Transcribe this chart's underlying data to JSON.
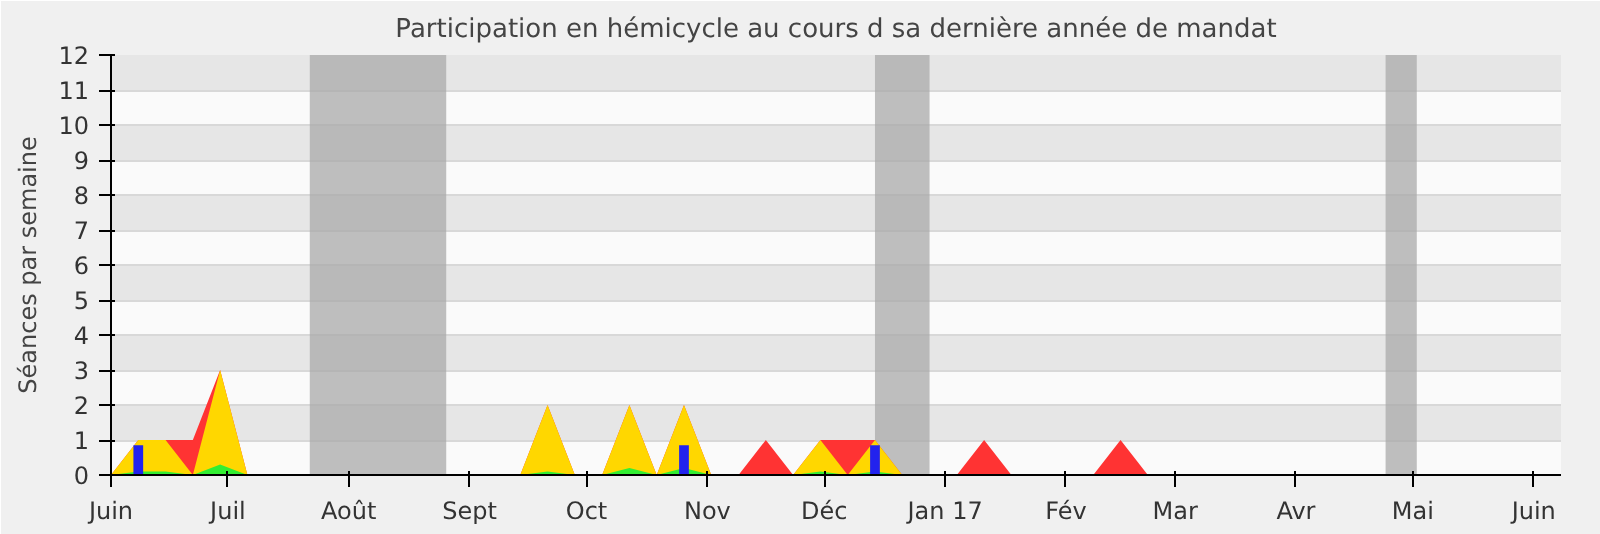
{
  "chart_data": {
    "type": "area",
    "title": "Participation en hémicycle au cours d sa dernière année de mandat",
    "ylabel": "Séances par semaine",
    "x": [
      "2016-06-01",
      "2016-06-08",
      "2016-06-15",
      "2016-06-22",
      "2016-06-29",
      "2016-07-06",
      "2016-07-13",
      "2016-07-20",
      "2016-07-27",
      "2016-08-03",
      "2016-08-10",
      "2016-08-17",
      "2016-08-24",
      "2016-08-31",
      "2016-09-07",
      "2016-09-14",
      "2016-09-21",
      "2016-09-28",
      "2016-10-05",
      "2016-10-12",
      "2016-10-19",
      "2016-10-26",
      "2016-11-02",
      "2016-11-09",
      "2016-11-16",
      "2016-11-23",
      "2016-11-30",
      "2016-12-07",
      "2016-12-14",
      "2016-12-21",
      "2016-12-28",
      "2017-01-04",
      "2017-01-11",
      "2017-01-18",
      "2017-01-25",
      "2017-02-01",
      "2017-02-08",
      "2017-02-15",
      "2017-02-22",
      "2017-03-01",
      "2017-03-08",
      "2017-03-15",
      "2017-03-22",
      "2017-03-29",
      "2017-04-05",
      "2017-04-12",
      "2017-04-19",
      "2017-04-26",
      "2017-05-03",
      "2017-05-10",
      "2017-05-17",
      "2017-05-24",
      "2017-05-31",
      "2017-06-07"
    ],
    "series": [
      {
        "color": "#ff3333",
        "values": [
          0,
          1,
          1,
          1,
          3,
          0,
          0,
          0,
          0,
          0,
          0,
          0,
          0,
          0,
          0,
          0,
          2,
          0,
          0,
          2,
          0,
          2,
          0,
          0,
          1,
          0,
          1,
          1,
          1,
          0,
          0,
          0,
          1,
          0,
          0,
          0,
          0,
          1,
          0,
          0,
          0,
          0,
          0,
          0,
          0,
          0,
          0,
          0,
          0,
          0,
          0,
          0,
          0,
          0
        ]
      },
      {
        "color": "#ffd700",
        "x": [
          "2016-06-01",
          "2016-06-08",
          "2016-06-15",
          "2016-06-22",
          "2016-06-29",
          "2016-07-06",
          "2016-07-13",
          "2016-07-20",
          "2016-07-27",
          "2016-08-03",
          "2016-08-10",
          "2016-08-17",
          "2016-08-24",
          "2016-08-31",
          "2016-09-07",
          "2016-09-14",
          "2016-09-21",
          "2016-09-28",
          "2016-10-05",
          "2016-10-12",
          "2016-10-19",
          "2016-10-26",
          "2016-11-02",
          "2016-11-09",
          "2016-11-16",
          "2016-11-23",
          "2016-11-30",
          "2016-12-07",
          "2016-12-14",
          "2016-12-21",
          "2016-12-28"
        ],
        "values": [
          0,
          1,
          1,
          0,
          3,
          0,
          0,
          0,
          0,
          0,
          0,
          0,
          0,
          0,
          0,
          0,
          2,
          0,
          0,
          2,
          0,
          2,
          0,
          0,
          0,
          0,
          1,
          0,
          1,
          0,
          0
        ]
      },
      {
        "color": "#33ee33",
        "x": [
          "2016-06-01",
          "2016-06-08",
          "2016-06-15",
          "2016-06-22",
          "2016-06-29",
          "2016-07-06",
          "2016-07-13",
          "2016-07-20",
          "2016-07-27",
          "2016-08-03",
          "2016-08-10",
          "2016-08-17",
          "2016-08-24",
          "2016-08-31",
          "2016-09-07",
          "2016-09-14",
          "2016-09-21",
          "2016-09-28",
          "2016-10-05",
          "2016-10-12",
          "2016-10-19",
          "2016-10-26",
          "2016-11-02",
          "2016-11-09",
          "2016-11-16",
          "2016-11-23",
          "2016-11-30",
          "2016-12-07",
          "2016-12-14",
          "2016-12-21"
        ],
        "values": [
          0,
          0.1,
          0.1,
          0,
          0.3,
          0,
          0,
          0,
          0,
          0,
          0,
          0,
          0,
          0,
          0,
          0,
          0.1,
          0,
          0,
          0.2,
          0,
          0.2,
          0,
          0,
          0,
          0,
          0.1,
          0,
          0.1,
          0
        ]
      },
      {
        "type": "bar",
        "color": "#2222ee",
        "x": [
          "2016-06-08",
          "2016-10-26",
          "2016-12-14"
        ],
        "values": [
          0.85,
          0.85,
          0.85
        ]
      }
    ],
    "xlim": [
      "2016-06-01",
      "2017-06-08"
    ],
    "xticks": [
      {
        "value": "2016-06-01",
        "label": "Juin"
      },
      {
        "value": "2016-07-01",
        "label": "Juil"
      },
      {
        "value": "2016-08-01",
        "label": "Août"
      },
      {
        "value": "2016-09-01",
        "label": "Sept"
      },
      {
        "value": "2016-10-01",
        "label": "Oct"
      },
      {
        "value": "2016-11-01",
        "label": "Nov"
      },
      {
        "value": "2016-12-01",
        "label": "Déc"
      },
      {
        "value": "2017-01-01",
        "label": "Jan 17"
      },
      {
        "value": "2017-02-01",
        "label": "Fév"
      },
      {
        "value": "2017-03-01",
        "label": "Mar"
      },
      {
        "value": "2017-04-01",
        "label": "Avr"
      },
      {
        "value": "2017-05-01",
        "label": "Mai"
      },
      {
        "value": "2017-06-01",
        "label": "Juin"
      }
    ],
    "ylim": [
      0,
      12
    ],
    "yticks": [
      0,
      1,
      2,
      3,
      4,
      5,
      6,
      7,
      8,
      9,
      10,
      11,
      12
    ],
    "bands": [
      {
        "axis": "x",
        "from": "2016-07-22",
        "to": "2016-08-26",
        "color": "#aaaaaa"
      },
      {
        "axis": "x",
        "from": "2016-12-14",
        "to": "2016-12-28",
        "color": "#aaaaaa"
      },
      {
        "axis": "x",
        "from": "2017-04-24",
        "to": "2017-05-02",
        "color": "#aaaaaa"
      }
    ],
    "grid": "y"
  }
}
